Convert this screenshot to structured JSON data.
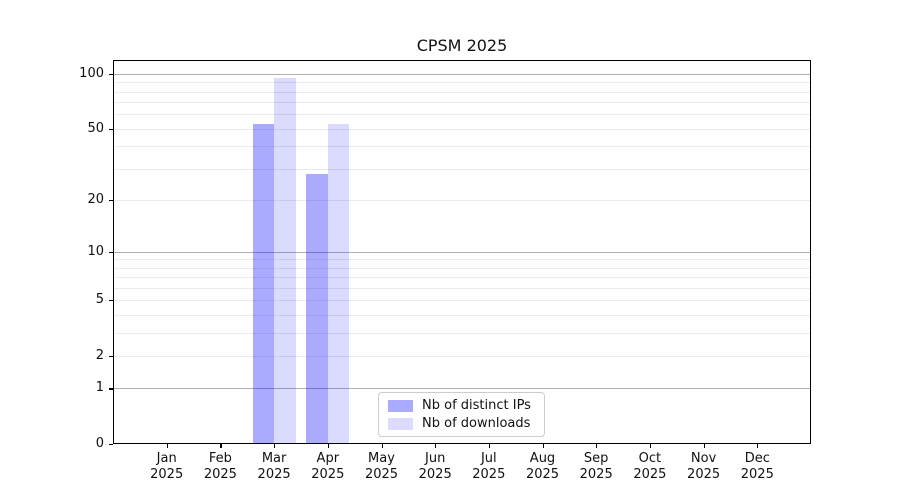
{
  "chart_data": {
    "type": "bar",
    "title": "CPSM 2025",
    "categories": [
      "Jan",
      "Feb",
      "Mar",
      "Apr",
      "May",
      "Jun",
      "Jul",
      "Aug",
      "Sep",
      "Oct",
      "Nov",
      "Dec"
    ],
    "category_year": "2025",
    "series": [
      {
        "name": "Nb of distinct IPs",
        "color": "rgba(0,0,255,0.335)",
        "values": [
          0,
          0,
          53,
          28,
          0,
          0,
          0,
          0,
          0,
          0,
          0,
          0
        ]
      },
      {
        "name": "Nb of downloads",
        "color": "rgba(0,0,255,0.140)",
        "values": [
          0,
          0,
          95,
          53,
          0,
          0,
          0,
          0,
          0,
          0,
          0,
          0
        ]
      }
    ],
    "xlabel": "",
    "ylabel": "",
    "yscale": "log1p",
    "ylim": [
      0,
      119
    ],
    "ytick_values": [
      0,
      1,
      2,
      5,
      10,
      20,
      50,
      100
    ],
    "ytick_labels": [
      "0",
      "1",
      "2",
      "5",
      "10",
      "20",
      "50",
      "100"
    ],
    "major_gridlines": [
      1,
      10,
      100
    ],
    "minor_gridlines": [
      2,
      3,
      4,
      5,
      6,
      7,
      8,
      9,
      20,
      30,
      40,
      50,
      60,
      70,
      80,
      90
    ],
    "grid": "on",
    "grid_major_color": "#b0b0b0",
    "grid_minor_color": "#ebebeb",
    "legend_position": "inside bottom-center"
  }
}
